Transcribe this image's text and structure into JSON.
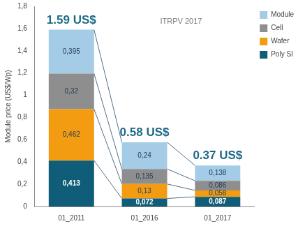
{
  "chart_data": {
    "type": "bar",
    "stacked": true,
    "data_labels": true,
    "grid": false,
    "legend": "top right",
    "y_label": "Module price (US$/Wp)",
    "categories": [
      "01_2011",
      "01_2016",
      "01_2017"
    ],
    "series": [
      {
        "name": "Poly SI",
        "color": "#0f5d78",
        "values": [
          0.413,
          0.072,
          0.087
        ],
        "value_labels": [
          "0,413",
          "0,072",
          "0,087"
        ]
      },
      {
        "name": "Wafer",
        "color": "#f39c12",
        "values": [
          0.462,
          0.13,
          0.058
        ],
        "value_labels": [
          "0,462",
          "0,13",
          "0,058"
        ]
      },
      {
        "name": "Cell",
        "color": "#8e8e8e",
        "values": [
          0.32,
          0.135,
          0.086
        ],
        "value_labels": [
          "0,32",
          "0,135",
          "0,086"
        ]
      },
      {
        "name": "Module",
        "color": "#a4cce6",
        "values": [
          0.395,
          0.24,
          0.138
        ],
        "value_labels": [
          "0,395",
          "0,24",
          "0,138"
        ]
      }
    ],
    "ylim": [
      0,
      1.8
    ],
    "yticks": [
      0,
      {
        "value": 0.2,
        "label": "0,2"
      },
      {
        "value": 0.4,
        "label": "0,4"
      },
      {
        "value": 0.6,
        "label": "0,6"
      },
      {
        "value": 0.8,
        "label": "0,8"
      },
      1,
      {
        "value": 1.2,
        "label": "1,2"
      },
      {
        "value": 1.4,
        "label": "1,4"
      },
      {
        "value": 1.6,
        "label": "1,6"
      },
      {
        "value": 1.8,
        "label": "1,8"
      }
    ],
    "annotations": [
      {
        "text": "1.59 US$",
        "category": "01_2011"
      },
      {
        "text": "0.58 US$",
        "category": "01_2016"
      },
      {
        "text": "0.37 US$",
        "category": "01_2017"
      },
      {
        "text": "ITRPV 2017"
      }
    ]
  }
}
